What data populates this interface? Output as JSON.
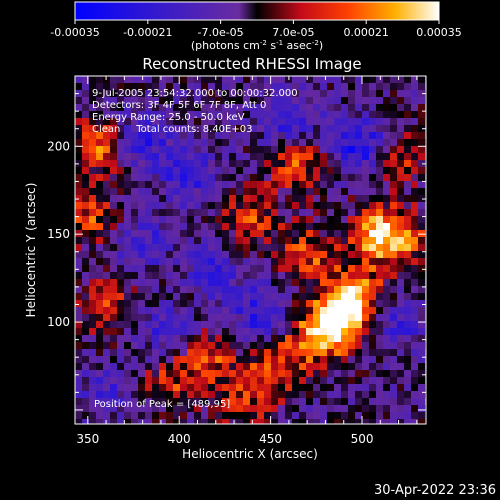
{
  "colorbar": {
    "tick_labels": [
      "-0.00035",
      "-0.00021",
      "-7.0e-05",
      "7.0e-05",
      "0.00021",
      "0.00035"
    ],
    "unit_label": "(photons cm-2 s-1 asec-2)",
    "range": [
      -0.00035,
      0.00035
    ],
    "colormap": "RHESSI blue-purple-red-yellow-white"
  },
  "image": {
    "title": "Reconstructed RHESSI Image",
    "info_lines": [
      "9-Jul-2005 23:54:32.000 to 00:00:32.000",
      "Detectors: 3F 4F 5F 6F 7F 8F, Att 0",
      "Energy Range: 25.0 - 50.0 keV",
      "Clean     Total counts: 8.40E+03"
    ],
    "peak_text": "Position of Peak = [489,95]",
    "xlabel": "Heliocentric X (arcsec)",
    "ylabel": "Heliocentric Y (arcsec)",
    "xlim": [
      343,
      535
    ],
    "ylim": [
      42,
      240
    ],
    "xticks": [
      350,
      400,
      450,
      500
    ],
    "yticks": [
      100,
      150,
      200
    ],
    "peak": [
      489,
      95
    ],
    "blobs": [
      {
        "x": 488,
        "y": 101,
        "v": 1.0
      },
      {
        "x": 497,
        "y": 117,
        "v": 0.75
      },
      {
        "x": 474,
        "y": 91,
        "v": 0.7
      },
      {
        "x": 508,
        "y": 150,
        "v": 0.65
      },
      {
        "x": 520,
        "y": 148,
        "v": 0.6
      },
      {
        "x": 470,
        "y": 138,
        "v": 0.55
      },
      {
        "x": 452,
        "y": 75,
        "v": 0.55
      },
      {
        "x": 415,
        "y": 80,
        "v": 0.55
      },
      {
        "x": 355,
        "y": 200,
        "v": 0.65
      },
      {
        "x": 350,
        "y": 160,
        "v": 0.55
      },
      {
        "x": 360,
        "y": 110,
        "v": 0.55
      },
      {
        "x": 410,
        "y": 120,
        "v": 0.5
      },
      {
        "x": 440,
        "y": 160,
        "v": 0.5
      },
      {
        "x": 465,
        "y": 190,
        "v": 0.55
      },
      {
        "x": 520,
        "y": 195,
        "v": 0.5
      },
      {
        "x": 395,
        "y": 65,
        "v": 0.45
      },
      {
        "x": 435,
        "y": 55,
        "v": 0.45
      },
      {
        "x": 380,
        "y": 205,
        "v": -0.55
      },
      {
        "x": 415,
        "y": 125,
        "v": -0.85
      },
      {
        "x": 405,
        "y": 185,
        "v": -0.55
      },
      {
        "x": 500,
        "y": 200,
        "v": -0.75
      },
      {
        "x": 445,
        "y": 105,
        "v": -0.6
      },
      {
        "x": 380,
        "y": 145,
        "v": -0.45
      },
      {
        "x": 395,
        "y": 95,
        "v": -0.5
      },
      {
        "x": 520,
        "y": 100,
        "v": -0.45
      },
      {
        "x": 460,
        "y": 215,
        "v": -0.55
      },
      {
        "x": 360,
        "y": 60,
        "v": -0.35
      }
    ]
  },
  "footer": {
    "timestamp": "30-Apr-2022 23:36"
  }
}
